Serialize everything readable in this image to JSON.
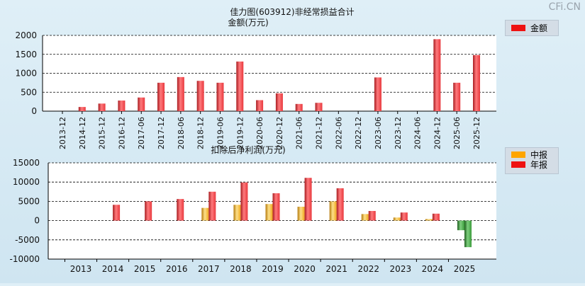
{
  "page": {
    "title": "佳力图(603912)非经常损益合计",
    "watermark": "CFi.CN"
  },
  "colors": {
    "bar_red": "#e8383d",
    "bar_orange": "#f0a81e",
    "bar_green": "#3a9a3a"
  },
  "legend_top": {
    "label": "金额",
    "color": "#ee1111"
  },
  "legend_bottom": [
    {
      "label": "中报",
      "color": "#ffa500"
    },
    {
      "label": "年报",
      "color": "#ee1111"
    }
  ],
  "chart_data": [
    {
      "type": "bar",
      "title": "金额(万元)",
      "ylim": [
        0,
        2000
      ],
      "yticks": [
        0,
        500,
        1000,
        1500,
        2000
      ],
      "categories": [
        "2013-12",
        "2014-12",
        "2015-12",
        "2016-12",
        "2017-06",
        "2017-12",
        "2018-06",
        "2018-12",
        "2019-06",
        "2019-12",
        "2020-06",
        "2020-12",
        "2021-06",
        "2021-12",
        "2022-06",
        "2022-12",
        "2023-06",
        "2023-12",
        "2024-06",
        "2024-12",
        "2025-06",
        "2025-12"
      ],
      "series": [
        {
          "name": "金额",
          "values": [
            0,
            110,
            200,
            280,
            360,
            750,
            900,
            800,
            750,
            1310,
            290,
            470,
            190,
            220,
            0,
            0,
            890,
            0,
            0,
            1900,
            750,
            1480
          ]
        }
      ]
    },
    {
      "type": "bar",
      "title": "扣除后净利润(万元)",
      "ylim": [
        -10000,
        15000
      ],
      "yticks": [
        -10000,
        -5000,
        0,
        5000,
        10000,
        15000
      ],
      "categories": [
        "2013",
        "2014",
        "2015",
        "2016",
        "2017",
        "2018",
        "2019",
        "2020",
        "2021",
        "2022",
        "2023",
        "2024",
        "2025"
      ],
      "series": [
        {
          "name": "中报",
          "values": [
            null,
            null,
            null,
            null,
            3300,
            4100,
            4300,
            3600,
            5000,
            1700,
            800,
            400,
            -2500
          ]
        },
        {
          "name": "年报",
          "values": [
            null,
            4100,
            5000,
            5600,
            7500,
            9900,
            7100,
            11100,
            8400,
            2500,
            2100,
            1800,
            -6900
          ]
        }
      ]
    }
  ]
}
